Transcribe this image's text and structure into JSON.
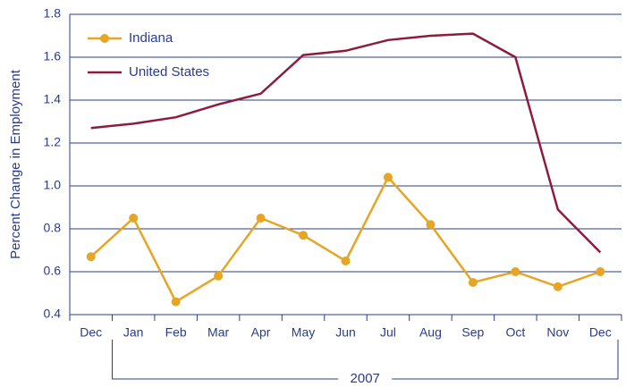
{
  "chart_data": {
    "type": "line",
    "y_label": "Percent Change in Employment",
    "categories": [
      "Dec",
      "Jan",
      "Feb",
      "Mar",
      "Apr",
      "May",
      "Jun",
      "Jul",
      "Aug",
      "Sep",
      "Oct",
      "Nov",
      "Dec"
    ],
    "group_label": "2007",
    "series": [
      {
        "name": "Indiana",
        "color": "#e6a524",
        "markers": true,
        "values": [
          0.67,
          0.85,
          0.46,
          0.58,
          0.85,
          0.77,
          0.65,
          1.04,
          0.82,
          0.55,
          0.6,
          0.53,
          0.6
        ]
      },
      {
        "name": "United States",
        "color": "#8c1c3e",
        "markers": false,
        "values": [
          1.27,
          1.29,
          1.32,
          1.38,
          1.43,
          1.61,
          1.63,
          1.68,
          1.7,
          1.71,
          1.6,
          0.89,
          0.69
        ]
      }
    ],
    "ylim": [
      0.4,
      1.8
    ],
    "yticks": [
      0.4,
      0.6,
      0.8,
      {
        "value": 1,
        "label": "1.0"
      },
      1.2,
      1.4,
      1.6,
      1.8
    ],
    "grid": true,
    "legend": "top-left"
  }
}
